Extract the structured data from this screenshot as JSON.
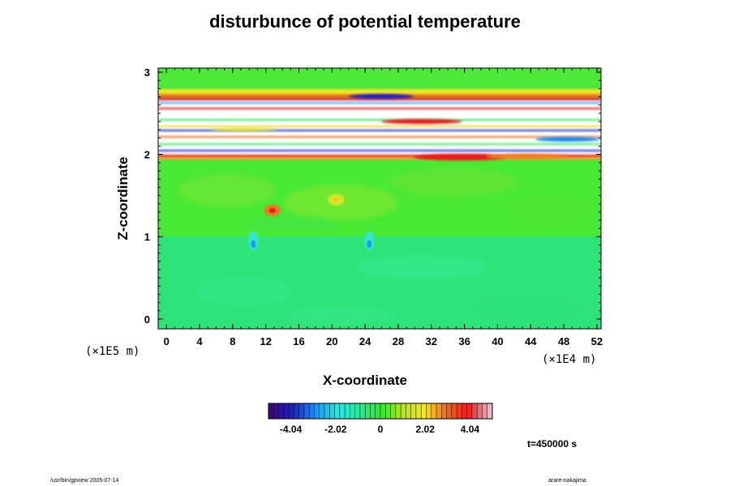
{
  "chart_data": {
    "type": "heatmap",
    "title": "disturbunce of potential temperature",
    "xlabel": "X-coordinate",
    "ylabel": "Z-coordinate",
    "x_ticks": [
      "0",
      "4",
      "8",
      "12",
      "16",
      "20",
      "24",
      "28",
      "32",
      "36",
      "40",
      "44",
      "48",
      "52"
    ],
    "y_ticks": [
      "0",
      "1",
      "2",
      "3"
    ],
    "xlim": [
      -1,
      52.5
    ],
    "ylim": [
      -0.12,
      3.05
    ],
    "x_unit": "(×1E4 m)",
    "y_unit": "(×1E5 m)",
    "colorbar": {
      "ticks": [
        "-4.04",
        "-2.02",
        "0",
        "2.02",
        "4.04"
      ],
      "tick_values": [
        -4.04,
        -2.02,
        0,
        2.02,
        4.04
      ],
      "range": [
        -5.05,
        5.05
      ],
      "colors": [
        "#3a0b6e",
        "#1a20c8",
        "#1e8cf0",
        "#20e8e8",
        "#2ee89a",
        "#30e830",
        "#b4e61e",
        "#f0e628",
        "#f06e1e",
        "#e81a1a",
        "#f0b4c8"
      ]
    },
    "layers": [
      {
        "region": "z 0 to 1.05",
        "approx_value": -0.3
      },
      {
        "region": "z 1.05 to 1.98",
        "approx_value": 0.4
      },
      {
        "region": "z 1.98 to 2.75",
        "approx_value": "strong alternating +/- bands (out of range, white)"
      },
      {
        "region": "z 2.75 to 3.05",
        "approx_value": 0.2
      }
    ],
    "features": [
      {
        "x": 12.8,
        "z": 1.32,
        "sign": "positive",
        "magnitude": 4.0
      },
      {
        "x": 20.5,
        "z": 1.45,
        "sign": "positive",
        "magnitude": 2.0
      },
      {
        "x": 10.5,
        "z": 0.95,
        "sign": "negative",
        "magnitude": -2.0
      },
      {
        "x": 24.5,
        "z": 0.95,
        "sign": "negative",
        "magnitude": -1.5
      }
    ]
  },
  "annotations": {
    "time": "t=450000 s",
    "footer_left": "/usr/bin/gpview 2005-07-14",
    "footer_right": "arare-nakajima"
  }
}
